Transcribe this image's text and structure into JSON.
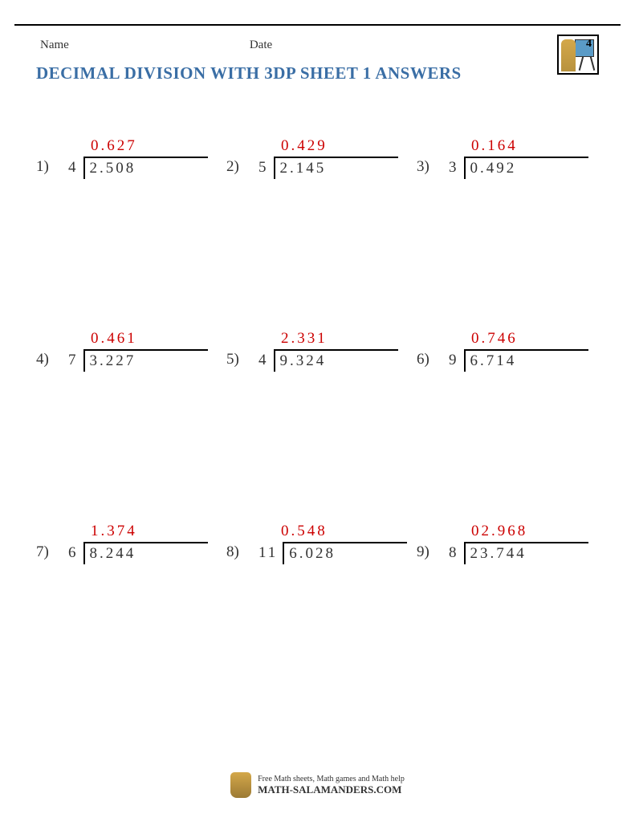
{
  "header": {
    "name_label": "Name",
    "date_label": "Date",
    "logo_number": "4"
  },
  "title": "DECIMAL DIVISION WITH 3DP SHEET 1 ANSWERS",
  "colors": {
    "title_color": "#3a6ea5",
    "answer_color": "#cc0000",
    "text_color": "#333333",
    "line_color": "#000000",
    "background": "#ffffff"
  },
  "typography": {
    "title_fontsize": 21,
    "problem_fontsize": 19,
    "label_fontsize": 15,
    "letter_spacing": 3
  },
  "problems": [
    {
      "n": "1)",
      "divisor": "4",
      "dividend": "2.508",
      "answer": "0.627"
    },
    {
      "n": "2)",
      "divisor": "5",
      "dividend": "2.145",
      "answer": "0.429"
    },
    {
      "n": "3)",
      "divisor": "3",
      "dividend": "0.492",
      "answer": "0.164"
    },
    {
      "n": "4)",
      "divisor": "7",
      "dividend": "3.227",
      "answer": "0.461"
    },
    {
      "n": "5)",
      "divisor": "4",
      "dividend": "9.324",
      "answer": "2.331"
    },
    {
      "n": "6)",
      "divisor": "9",
      "dividend": "6.714",
      "answer": "0.746"
    },
    {
      "n": "7)",
      "divisor": "6",
      "dividend": "8.244",
      "answer": "1.374"
    },
    {
      "n": "8)",
      "divisor": "11",
      "dividend": "6.028",
      "answer": "0.548"
    },
    {
      "n": "9)",
      "divisor": "8",
      "dividend": "23.744",
      "answer": "02.968"
    }
  ],
  "footer": {
    "line1": "Free Math sheets, Math games and Math help",
    "line2": "MATH-SALAMANDERS.COM"
  }
}
